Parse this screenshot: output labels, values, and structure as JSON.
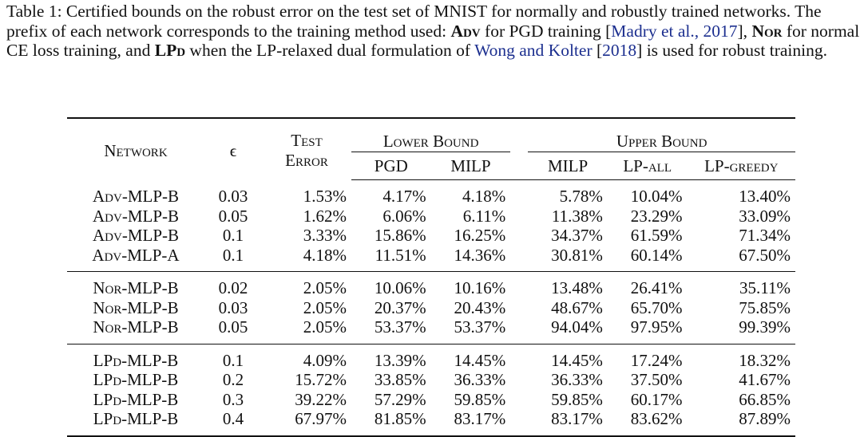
{
  "caption": {
    "prefix": "Table 1: Certified bounds on the robust error on the test set of MNIST for normally and robustly trained networks. The prefix of each network corresponds to the training method used: ",
    "adv": "Adv",
    "adv_text": " for PGD training [",
    "madry_cite": "Madry et al., 2017",
    "after_madry": "], ",
    "nor": "Nor",
    "nor_text": " for normal CE loss training, and ",
    "lpd": "LPd",
    "lpd_text": " when the LP-relaxed dual formulation of ",
    "wong_cite": "Wong and Kolter",
    "wong_year_open": " [",
    "wong_year": "2018",
    "suffix": "] is used for robust training."
  },
  "headers": {
    "network": "Network",
    "epsilon": "ϵ",
    "test_error_1": "Test",
    "test_error_2": "Error",
    "lower_bound": "Lower Bound",
    "upper_bound": "Upper Bound",
    "pgd": "PGD",
    "milp_lower": "MILP",
    "milp_upper": "MILP",
    "lp_all": "LP-all",
    "lp_greedy": "LP-greedy"
  },
  "groups": [
    {
      "rows": [
        {
          "prefix": "Adv",
          "suffix": "-MLP-B",
          "eps": "0.03",
          "test_error": "1.53%",
          "pgd": "4.17%",
          "milp_l": "4.18%",
          "milp_u": "5.78%",
          "lp_all": "10.04%",
          "lp_greedy": "13.40%"
        },
        {
          "prefix": "Adv",
          "suffix": "-MLP-B",
          "eps": "0.05",
          "test_error": "1.62%",
          "pgd": "6.06%",
          "milp_l": "6.11%",
          "milp_u": "11.38%",
          "lp_all": "23.29%",
          "lp_greedy": "33.09%"
        },
        {
          "prefix": "Adv",
          "suffix": "-MLP-B",
          "eps": "0.1",
          "test_error": "3.33%",
          "pgd": "15.86%",
          "milp_l": "16.25%",
          "milp_u": "34.37%",
          "lp_all": "61.59%",
          "lp_greedy": "71.34%"
        },
        {
          "prefix": "Adv",
          "suffix": "-MLP-A",
          "eps": "0.1",
          "test_error": "4.18%",
          "pgd": "11.51%",
          "milp_l": "14.36%",
          "milp_u": "30.81%",
          "lp_all": "60.14%",
          "lp_greedy": "67.50%"
        }
      ]
    },
    {
      "rows": [
        {
          "prefix": "Nor",
          "suffix": "-MLP-B",
          "eps": "0.02",
          "test_error": "2.05%",
          "pgd": "10.06%",
          "milp_l": "10.16%",
          "milp_u": "13.48%",
          "lp_all": "26.41%",
          "lp_greedy": "35.11%"
        },
        {
          "prefix": "Nor",
          "suffix": "-MLP-B",
          "eps": "0.03",
          "test_error": "2.05%",
          "pgd": "20.37%",
          "milp_l": "20.43%",
          "milp_u": "48.67%",
          "lp_all": "65.70%",
          "lp_greedy": "75.85%"
        },
        {
          "prefix": "Nor",
          "suffix": "-MLP-B",
          "eps": "0.05",
          "test_error": "2.05%",
          "pgd": "53.37%",
          "milp_l": "53.37%",
          "milp_u": "94.04%",
          "lp_all": "97.95%",
          "lp_greedy": "99.39%"
        }
      ]
    },
    {
      "rows": [
        {
          "prefix": "LPd",
          "suffix": "-MLP-B",
          "eps": "0.1",
          "test_error": "4.09%",
          "pgd": "13.39%",
          "milp_l": "14.45%",
          "milp_u": "14.45%",
          "lp_all": "17.24%",
          "lp_greedy": "18.32%"
        },
        {
          "prefix": "LPd",
          "suffix": "-MLP-B",
          "eps": "0.2",
          "test_error": "15.72%",
          "pgd": "33.85%",
          "milp_l": "36.33%",
          "milp_u": "36.33%",
          "lp_all": "37.50%",
          "lp_greedy": "41.67%"
        },
        {
          "prefix": "LPd",
          "suffix": "-MLP-B",
          "eps": "0.3",
          "test_error": "39.22%",
          "pgd": "57.29%",
          "milp_l": "59.85%",
          "milp_u": "59.85%",
          "lp_all": "60.17%",
          "lp_greedy": "66.85%"
        },
        {
          "prefix": "LPd",
          "suffix": "-MLP-B",
          "eps": "0.4",
          "test_error": "67.97%",
          "pgd": "81.85%",
          "milp_l": "83.17%",
          "milp_u": "83.17%",
          "lp_all": "83.62%",
          "lp_greedy": "87.89%"
        }
      ]
    }
  ]
}
